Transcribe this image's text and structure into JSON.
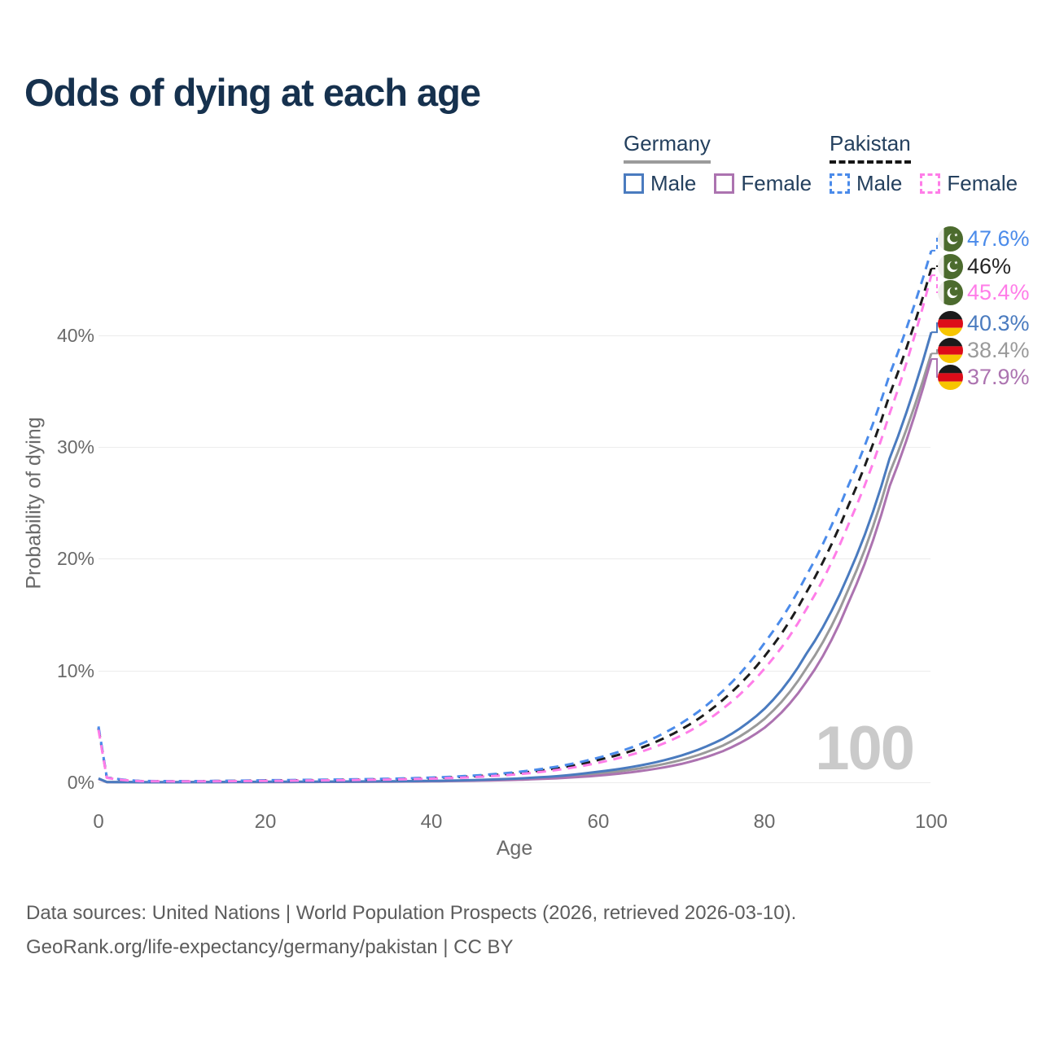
{
  "title": "Odds of dying at each age",
  "legend": {
    "germany": {
      "label": "Germany",
      "male": "Male",
      "female": "Female"
    },
    "pakistan": {
      "label": "Pakistan",
      "male": "Male",
      "female": "Female"
    }
  },
  "axes": {
    "y_title": "Probability of dying",
    "y_ticks": [
      "40%",
      "30%",
      "20%",
      "10%",
      "0%"
    ],
    "x_ticks": [
      "0",
      "20",
      "40",
      "60",
      "80",
      "100"
    ],
    "x_title": "Age"
  },
  "hover_age": "100",
  "colors": {
    "title": "#16314e",
    "germany_male": "#4a7bbf",
    "germany_female": "#ac73b0",
    "germany_all": "#9a9a9a",
    "pakistan_male": "#4b8bea",
    "pakistan_female": "#ff7de8",
    "pakistan_all": "#1c1c1c"
  },
  "end_labels": [
    {
      "flag": "pakistan-flag-icon",
      "flag_ref": "#flag-pk",
      "value": "47.6%",
      "color": "#4b8bea"
    },
    {
      "flag": "pakistan-flag-icon",
      "flag_ref": "#flag-pk",
      "value": "46%",
      "color": "#262626"
    },
    {
      "flag": "pakistan-flag-icon",
      "flag_ref": "#flag-pk",
      "value": "45.4%",
      "color": "#ff7de8"
    },
    {
      "flag": "germany-flag-icon",
      "flag_ref": "#flag-de",
      "value": "40.3%",
      "color": "#4a7bbf"
    },
    {
      "flag": "germany-flag-icon",
      "flag_ref": "#flag-de",
      "value": "38.4%",
      "color": "#9a9a9a"
    },
    {
      "flag": "germany-flag-icon",
      "flag_ref": "#flag-de",
      "value": "37.9%",
      "color": "#ac73b0"
    }
  ],
  "footer": {
    "line1": "Data sources: United Nations | World Population Prospects (2026, retrieved 2026-03-10).",
    "line2": "GeoRank.org/life-expectancy/germany/pakistan | CC BY"
  },
  "chart_data": {
    "type": "line",
    "title": "Odds of dying at each age",
    "xlabel": "Age",
    "ylabel": "Probability of dying",
    "x_range": [
      0,
      100
    ],
    "y_range_percent": [
      0,
      48
    ],
    "grid": true,
    "legend_position": "top-right",
    "x": [
      0,
      1,
      5,
      10,
      15,
      20,
      25,
      30,
      35,
      40,
      45,
      50,
      55,
      60,
      65,
      70,
      75,
      80,
      85,
      90,
      95,
      100
    ],
    "series": [
      {
        "name": "Germany Average",
        "country": "Germany",
        "style": "solid",
        "color": "#9a9a9a",
        "final_label": "38.4%",
        "values": [
          0.33,
          0.025,
          0.01,
          0.01,
          0.025,
          0.035,
          0.045,
          0.055,
          0.075,
          0.11,
          0.17,
          0.28,
          0.45,
          0.78,
          1.25,
          2.0,
          3.3,
          5.7,
          10.2,
          17.2,
          27.7,
          38.4
        ]
      },
      {
        "name": "Germany Female",
        "country": "Germany",
        "style": "solid",
        "color": "#ac73b0",
        "final_label": "37.9%",
        "values": [
          0.3,
          0.02,
          0.01,
          0.01,
          0.02,
          0.02,
          0.03,
          0.04,
          0.06,
          0.09,
          0.14,
          0.22,
          0.36,
          0.6,
          1.0,
          1.65,
          2.8,
          4.9,
          9.0,
          16.0,
          26.5,
          37.9
        ]
      },
      {
        "name": "Germany Male",
        "country": "Germany",
        "style": "solid",
        "color": "#4a7bbf",
        "final_label": "40.3%",
        "values": [
          0.35,
          0.03,
          0.01,
          0.01,
          0.03,
          0.05,
          0.06,
          0.07,
          0.09,
          0.13,
          0.2,
          0.33,
          0.55,
          0.95,
          1.5,
          2.4,
          3.9,
          6.6,
          11.5,
          18.5,
          29.0,
          40.3
        ]
      },
      {
        "name": "Pakistan Average",
        "country": "Pakistan",
        "style": "dashed",
        "color": "#1c1c1c",
        "final_label": "46%",
        "values": [
          4.85,
          0.42,
          0.11,
          0.09,
          0.12,
          0.16,
          0.19,
          0.23,
          0.28,
          0.38,
          0.53,
          0.8,
          1.25,
          2.0,
          3.05,
          4.75,
          7.4,
          11.3,
          17.0,
          24.7,
          34.7,
          46.0
        ]
      },
      {
        "name": "Pakistan Male",
        "country": "Pakistan",
        "style": "dashed",
        "color": "#4b8bea",
        "final_label": "47.6%",
        "values": [
          5.0,
          0.45,
          0.12,
          0.1,
          0.13,
          0.18,
          0.22,
          0.26,
          0.32,
          0.42,
          0.6,
          0.9,
          1.4,
          2.2,
          3.4,
          5.3,
          8.2,
          12.5,
          18.5,
          26.5,
          36.5,
          47.6
        ]
      },
      {
        "name": "Pakistan Female",
        "country": "Pakistan",
        "style": "dashed",
        "color": "#ff7de8",
        "final_label": "45.4%",
        "values": [
          4.7,
          0.4,
          0.1,
          0.08,
          0.1,
          0.13,
          0.16,
          0.2,
          0.25,
          0.33,
          0.46,
          0.7,
          1.1,
          1.75,
          2.7,
          4.2,
          6.6,
          10.2,
          15.5,
          23.0,
          33.0,
          45.4
        ]
      }
    ]
  }
}
